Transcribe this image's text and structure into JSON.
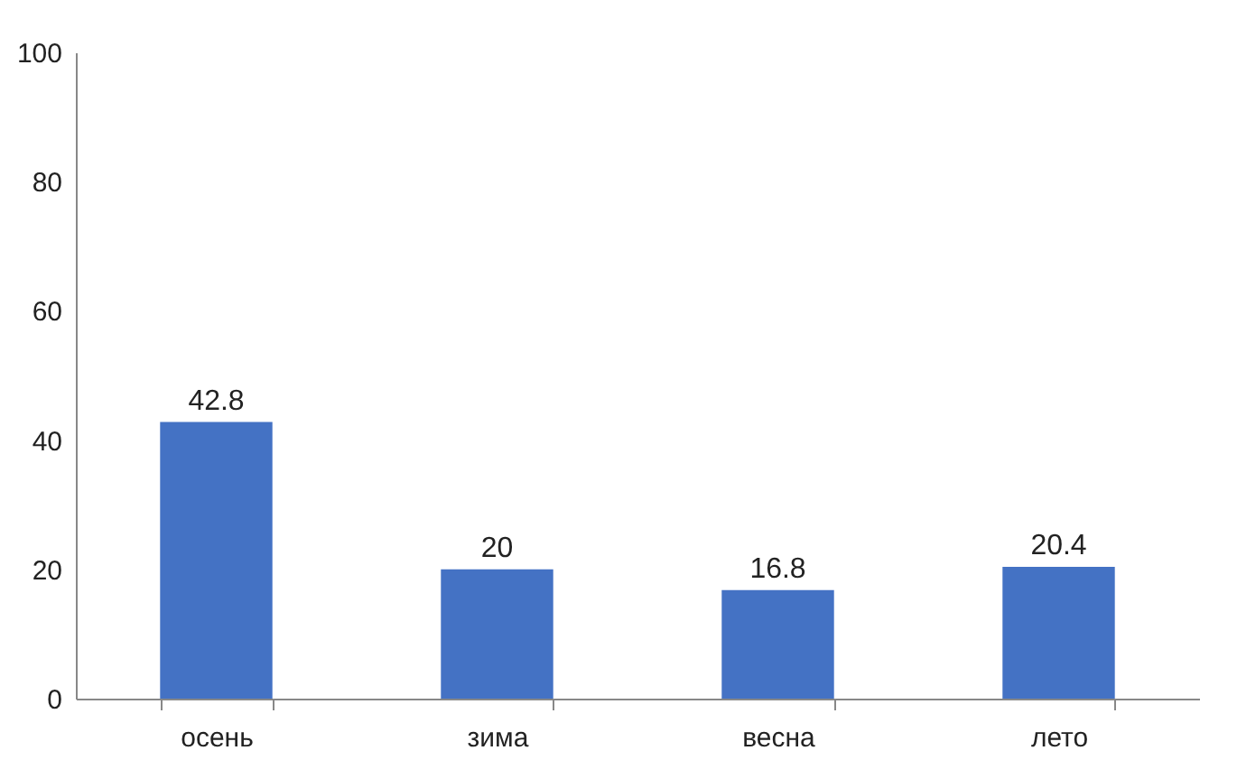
{
  "chart_data": {
    "type": "bar",
    "categories": [
      "осень",
      "зима",
      "весна",
      "лето"
    ],
    "values": [
      42.8,
      20,
      16.8,
      20.4
    ],
    "color": "#4472c4",
    "ylim": [
      0,
      100
    ],
    "yticks": [
      0,
      20,
      40,
      60,
      80,
      100
    ],
    "data_labels": true,
    "grid": false
  }
}
